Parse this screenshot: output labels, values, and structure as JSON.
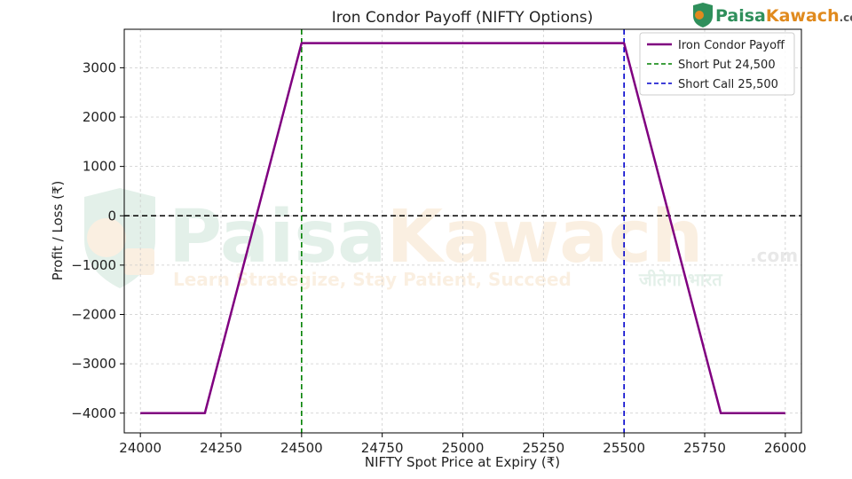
{
  "chart_data": {
    "type": "line",
    "title": "Iron Condor Payoff (NIFTY Options)",
    "xlabel": "NIFTY Spot Price at Expiry (₹)",
    "ylabel": "Profit / Loss (₹)",
    "xlim": [
      23950,
      26050
    ],
    "ylim": [
      -4400,
      3780
    ],
    "xticks": [
      24000,
      24250,
      24500,
      24750,
      25000,
      25250,
      25500,
      25750,
      26000
    ],
    "yticks": [
      -4000,
      -3000,
      -2000,
      -1000,
      0,
      1000,
      2000,
      3000
    ],
    "xtick_labels": [
      "24000",
      "24250",
      "24500",
      "24750",
      "25000",
      "25250",
      "25500",
      "25750",
      "26000"
    ],
    "ytick_labels": [
      "−4000",
      "−3000",
      "−2000",
      "−1000",
      "0",
      "1000",
      "2000",
      "3000"
    ],
    "grid": true,
    "legend_position": "top-right",
    "series": [
      {
        "name": "Iron Condor Payoff",
        "color": "#800080",
        "style": "solid",
        "x": [
          24000,
          24200,
          24500,
          25500,
          25800,
          26000
        ],
        "y": [
          -4000,
          -4000,
          3500,
          3500,
          -4000,
          -4000
        ]
      }
    ],
    "vlines": [
      {
        "name": "Short Put 24,500",
        "x": 24500,
        "color": "#008000",
        "style": "dashed"
      },
      {
        "name": "Short Call 25,500",
        "x": 25500,
        "color": "#0000cc",
        "style": "dashed"
      }
    ],
    "hlines": [
      {
        "y": 0,
        "color": "#000000",
        "style": "dashed"
      }
    ]
  },
  "watermark": {
    "brand": "PaisaKawach",
    "brand_part1": "Paisa",
    "brand_part2": "Kawach",
    "suffix": ".com",
    "tagline": "Learn Strategize, Stay Patient, Succeed",
    "tagline_script": "जीतेगा भारत"
  },
  "logo": {
    "part1": "Paisa",
    "part2": "Kawach",
    "suffix": ".com"
  }
}
